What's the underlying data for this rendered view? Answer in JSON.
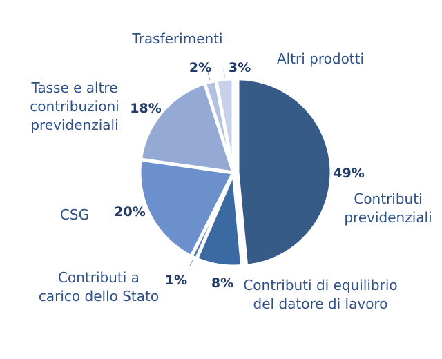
{
  "chart_data": {
    "type": "pie",
    "title": "",
    "slices": [
      {
        "label": "Contributi previdenziali",
        "lines": [
          "Contributi",
          "previdenziali"
        ],
        "value": 49,
        "value_label": "49%",
        "color": "#365b87"
      },
      {
        "label": "Contributi di equilibrio del datore di lavoro",
        "lines": [
          "Contributi di equilibrio",
          "del datore di lavoro"
        ],
        "value": 8,
        "value_label": "8%",
        "color": "#3b6aa3"
      },
      {
        "label": "Contributi a carico dello Stato",
        "lines": [
          "Contributi a",
          "carico dello Stato"
        ],
        "value": 1,
        "value_label": "1%",
        "color": "#4b7bbd"
      },
      {
        "label": "CSG",
        "lines": [
          "CSG"
        ],
        "value": 20,
        "value_label": "20%",
        "color": "#6c90cc"
      },
      {
        "label": "Tasse e altre contribuzioni previdenziali",
        "lines": [
          "Tasse e altre",
          "contribuzioni",
          "previdenziali"
        ],
        "value": 18,
        "value_label": "18%",
        "color": "#95a9d5"
      },
      {
        "label": "Trasferimenti",
        "lines": [
          "Trasferimenti"
        ],
        "value": 2,
        "value_label": "2%",
        "color": "#b4c0e0"
      },
      {
        "label": "Altri prodotti",
        "lines": [
          "Altri prodotti"
        ],
        "value": 3,
        "value_label": "3%",
        "color": "#c8d1ea"
      }
    ]
  }
}
